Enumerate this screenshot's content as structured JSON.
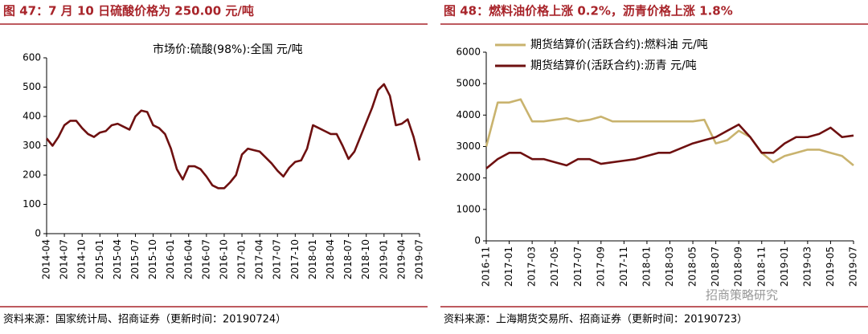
{
  "chart_data": [
    {
      "type": "line",
      "title": "图 47：7 月 10 日硫酸价格为 250.00 元/吨",
      "source": "资料来源：国家统计局、招商证券（更新时间：20190724）",
      "categories": [
        "2014-04",
        null,
        null,
        "2014-07",
        null,
        null,
        "2014-10",
        null,
        null,
        "2015-01",
        null,
        null,
        "2015-04",
        null,
        null,
        "2015-07",
        null,
        null,
        "2015-10",
        null,
        null,
        "2016-01",
        null,
        null,
        "2016-04",
        null,
        null,
        "2016-07",
        null,
        null,
        "2016-10",
        null,
        null,
        "2017-01",
        null,
        null,
        "2017-04",
        null,
        null,
        "2017-07",
        null,
        null,
        "2017-10",
        null,
        null,
        "2018-01",
        null,
        null,
        "2018-04",
        null,
        null,
        "2018-07",
        null,
        null,
        "2018-10",
        null,
        null,
        "2019-01",
        null,
        null,
        "2019-04",
        null,
        null,
        "2019-07"
      ],
      "series": [
        {
          "name": "市场价:硫酸(98%):全国 元/吨",
          "color": "#6e1010",
          "values": [
            325,
            300,
            330,
            370,
            385,
            385,
            360,
            340,
            330,
            345,
            350,
            370,
            375,
            365,
            355,
            400,
            420,
            415,
            370,
            360,
            340,
            290,
            220,
            185,
            230,
            230,
            220,
            195,
            165,
            155,
            155,
            175,
            200,
            270,
            290,
            285,
            280,
            260,
            240,
            215,
            195,
            225,
            245,
            250,
            290,
            370,
            360,
            350,
            340,
            340,
            300,
            255,
            280,
            330,
            380,
            430,
            490,
            510,
            470,
            370,
            375,
            390,
            330,
            250
          ]
        }
      ],
      "ylim": [
        0,
        600
      ],
      "yticks": [
        0,
        100,
        200,
        300,
        400,
        500,
        600
      ],
      "legend": "top"
    },
    {
      "type": "line",
      "title": "图 48：燃料油价格上涨 0.2%，沥青价格上涨 1.8%",
      "source": "资料来源：上海期货交易所、招商证券（更新时间：20190723）",
      "categories": [
        "2016-11",
        null,
        "2017-01",
        null,
        "2017-03",
        null,
        "2017-05",
        null,
        "2017-07",
        null,
        "2017-09",
        null,
        "2017-11",
        null,
        "2018-01",
        null,
        "2018-03",
        null,
        "2018-05",
        null,
        "2018-07",
        null,
        "2018-09",
        null,
        "2018-11",
        null,
        "2019-01",
        null,
        "2019-03",
        null,
        "2019-05",
        null,
        "2019-07"
      ],
      "series": [
        {
          "name": "期货结算价(活跃合约):燃料油 元/吨",
          "color": "#c9b36e",
          "values": [
            3000,
            4400,
            4400,
            4500,
            3800,
            3800,
            3850,
            3900,
            3800,
            3850,
            3950,
            3800,
            3800,
            3800,
            3800,
            3800,
            3800,
            3800,
            3800,
            3850,
            3100,
            3200,
            3500,
            3300,
            2800,
            2500,
            2700,
            2800,
            2900,
            2900,
            2800,
            2700,
            2400
          ]
        },
        {
          "name": "期货结算价(活跃合约):沥青 元/吨",
          "color": "#6e1010",
          "values": [
            2300,
            2600,
            2800,
            2800,
            2600,
            2600,
            2500,
            2400,
            2600,
            2600,
            2450,
            2500,
            2550,
            2600,
            2700,
            2800,
            2800,
            2950,
            3100,
            3200,
            3300,
            3500,
            3700,
            3300,
            2800,
            2800,
            3100,
            3300,
            3300,
            3400,
            3600,
            3300,
            3350
          ]
        }
      ],
      "ylim": [
        0,
        6000
      ],
      "yticks": [
        0,
        1000,
        2000,
        3000,
        4000,
        5000,
        6000
      ],
      "legend": "top"
    }
  ],
  "watermark": "招商策略研究"
}
